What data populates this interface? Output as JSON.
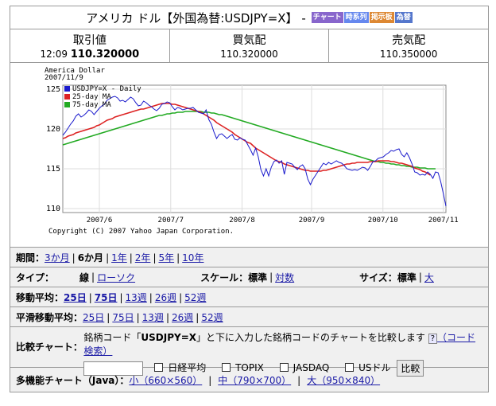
{
  "title": {
    "name": "アメリカ ドル【外国為替:USDJPY=X】 -",
    "tags": [
      {
        "label": "チャート",
        "color": "#8866cc"
      },
      {
        "label": "時系列",
        "color": "#6688ee"
      },
      {
        "label": "掲示板",
        "color": "#dd8833"
      },
      {
        "label": "為替",
        "color": "#5577cc"
      }
    ]
  },
  "quotes": [
    {
      "label": "取引値",
      "time": "12:09",
      "value": "110.320000"
    },
    {
      "label": "買気配",
      "value": "110.320000"
    },
    {
      "label": "売気配",
      "value": "110.350000"
    }
  ],
  "chart_data": {
    "type": "line",
    "title": "America Dollar",
    "subtitle": "2007/11/9",
    "x_tick_labels": [
      "2007/6",
      "2007/7",
      "2007/8",
      "2007/9",
      "2007/10",
      "2007/11"
    ],
    "y_ticks": [
      110,
      115,
      120,
      125
    ],
    "ylim": [
      109.5,
      125.5
    ],
    "grid": true,
    "legend": "top-left",
    "copyright": "Copyright (C) 2007 Yahoo Japan Corporation.",
    "series": [
      {
        "name": "USDJPY=X - Daily",
        "color": "#1a1acc",
        "values": [
          119.2,
          119.6,
          120.1,
          120.6,
          121.0,
          121.6,
          121.9,
          121.5,
          121.7,
          122.0,
          122.4,
          122.2,
          121.8,
          122.2,
          122.6,
          122.9,
          123.1,
          123.6,
          123.8,
          124.0,
          124.1,
          123.9,
          123.5,
          123.6,
          123.4,
          123.7,
          124.0,
          123.8,
          123.3,
          122.9,
          123.0,
          123.5,
          123.3,
          123.0,
          122.8,
          122.5,
          122.3,
          122.6,
          123.1,
          123.2,
          123.4,
          123.3,
          122.8,
          122.4,
          122.7,
          122.6,
          122.4,
          122.5,
          122.6,
          122.6,
          122.7,
          122.4,
          122.1,
          122.0,
          121.9,
          122.4,
          121.2,
          120.6,
          119.6,
          118.8,
          119.3,
          119.4,
          119.1,
          118.8,
          119.1,
          119.3,
          118.7,
          118.6,
          118.9,
          118.7,
          118.6,
          118.0,
          117.4,
          116.7,
          117.6,
          116.5,
          114.9,
          114.1,
          115.0,
          114.1,
          115.2,
          115.9,
          116.1,
          115.7,
          116.0,
          114.3,
          115.8,
          115.7,
          115.6,
          115.2,
          114.9,
          115.3,
          115.5,
          115.0,
          113.7,
          113.0,
          113.7,
          114.2,
          114.7,
          115.2,
          115.7,
          115.5,
          115.8,
          115.6,
          115.8,
          116.0,
          115.8,
          115.7,
          115.4,
          115.0,
          114.9,
          114.8,
          114.9,
          114.8,
          115.0,
          115.2,
          115.1,
          114.8,
          115.3,
          115.9,
          116.0,
          116.3,
          116.4,
          116.5,
          116.8,
          117.0,
          117.3,
          117.2,
          117.4,
          117.5,
          116.8,
          116.5,
          117.0,
          116.4,
          115.6,
          114.6,
          114.5,
          114.2,
          114.3,
          114.2,
          114.6,
          114.3,
          113.8,
          114.6,
          114.5,
          113.4,
          111.9,
          110.3
        ]
      },
      {
        "name": "25-day MA",
        "color": "#dd2222",
        "values": [
          118.8,
          118.9,
          119.1,
          119.2,
          119.3,
          119.5,
          119.6,
          119.7,
          119.8,
          119.9,
          120.0,
          120.1,
          120.2,
          120.4,
          120.5,
          120.7,
          120.9,
          121.1,
          121.2,
          121.3,
          121.5,
          121.6,
          121.7,
          121.8,
          121.9,
          122.0,
          122.1,
          122.2,
          122.3,
          122.4,
          122.5,
          122.5,
          122.6,
          122.7,
          122.8,
          122.9,
          123.0,
          123.1,
          123.2,
          123.2,
          123.2,
          123.2,
          123.1,
          123.1,
          123.0,
          122.9,
          122.8,
          122.7,
          122.6,
          122.5,
          122.4,
          122.3,
          122.2,
          122.1,
          121.9,
          121.7,
          121.5,
          121.3,
          121.1,
          120.8,
          120.6,
          120.4,
          120.2,
          120.0,
          119.8,
          119.6,
          119.3,
          119.1,
          118.9,
          118.7,
          118.5,
          118.3,
          118.2,
          117.9,
          117.6,
          117.4,
          117.2,
          117.0,
          116.8,
          116.6,
          116.4,
          116.2,
          116.0,
          115.9,
          115.8,
          115.6,
          115.5,
          115.4,
          115.3,
          115.2,
          115.1,
          115.0,
          114.9,
          114.8,
          114.8,
          114.7,
          114.7,
          114.7,
          114.7,
          114.7,
          114.8,
          114.8,
          114.9,
          115.0,
          115.1,
          115.2,
          115.3,
          115.4,
          115.5,
          115.6,
          115.6,
          115.7,
          115.7,
          115.8,
          115.8,
          115.8,
          115.8,
          115.8,
          115.9,
          115.9,
          115.9,
          116.0,
          116.0,
          116.0,
          116.0,
          116.0,
          115.9,
          115.9,
          115.8,
          115.7,
          115.7,
          115.6,
          115.5,
          115.4,
          115.3,
          115.1,
          115.0,
          114.9,
          114.7,
          114.6,
          114.4,
          114.2
        ]
      },
      {
        "name": "75-day MA",
        "color": "#22aa22",
        "values": [
          118.0,
          118.1,
          118.2,
          118.3,
          118.4,
          118.5,
          118.6,
          118.7,
          118.8,
          118.9,
          119.0,
          119.1,
          119.2,
          119.3,
          119.4,
          119.5,
          119.6,
          119.7,
          119.8,
          119.9,
          120.0,
          120.1,
          120.2,
          120.3,
          120.4,
          120.5,
          120.6,
          120.7,
          120.8,
          120.9,
          121.0,
          121.1,
          121.2,
          121.3,
          121.4,
          121.5,
          121.6,
          121.7,
          121.7,
          121.8,
          121.9,
          121.9,
          122.0,
          122.0,
          122.1,
          122.1,
          122.1,
          122.2,
          122.2,
          122.2,
          122.2,
          122.2,
          122.2,
          122.2,
          122.1,
          122.1,
          122.1,
          122.0,
          122.0,
          121.9,
          121.8,
          121.8,
          121.7,
          121.6,
          121.5,
          121.4,
          121.3,
          121.2,
          121.1,
          121.0,
          120.9,
          120.8,
          120.7,
          120.6,
          120.5,
          120.4,
          120.3,
          120.2,
          120.1,
          120.0,
          119.9,
          119.8,
          119.7,
          119.6,
          119.5,
          119.4,
          119.3,
          119.2,
          119.1,
          119.0,
          118.9,
          118.8,
          118.7,
          118.6,
          118.5,
          118.4,
          118.3,
          118.2,
          118.1,
          118.0,
          117.9,
          117.8,
          117.7,
          117.6,
          117.5,
          117.4,
          117.3,
          117.2,
          117.1,
          117.0,
          116.9,
          116.8,
          116.7,
          116.6,
          116.5,
          116.4,
          116.3,
          116.2,
          116.1,
          116.0,
          115.9,
          115.9,
          115.8,
          115.8,
          115.7,
          115.7,
          115.6,
          115.6,
          115.5,
          115.5,
          115.4,
          115.4,
          115.3,
          115.3,
          115.2,
          115.2,
          115.2,
          115.1,
          115.1,
          115.1,
          115.0,
          115.0,
          115.0,
          115.0
        ]
      }
    ]
  },
  "period": {
    "label": "期間：",
    "options": [
      {
        "label": "3か月",
        "link": true,
        "bold": false
      },
      {
        "label": "6か月",
        "link": false,
        "bold": true
      },
      {
        "label": "1年",
        "link": true,
        "bold": false
      },
      {
        "label": "2年",
        "link": true,
        "bold": false
      },
      {
        "label": "5年",
        "link": true,
        "bold": false
      },
      {
        "label": "10年",
        "link": true,
        "bold": false
      }
    ]
  },
  "type_row": {
    "label": "タイプ：",
    "current": "線",
    "alt": "ローソク",
    "scale_label": "スケール：",
    "scale_current": "標準",
    "scale_alt": "対数",
    "size_label": "サイズ：",
    "size_current": "標準",
    "size_alt": "大"
  },
  "ma": {
    "label": "移動平均：",
    "options": [
      {
        "label": "25日",
        "bold": true
      },
      {
        "label": "75日",
        "bold": true
      },
      {
        "label": "13週",
        "bold": false
      },
      {
        "label": "26週",
        "bold": false
      },
      {
        "label": "52週",
        "bold": false
      }
    ]
  },
  "smooth": {
    "label": "平滑移動平均：",
    "options": [
      "25日",
      "75日",
      "13週",
      "26週",
      "52週"
    ]
  },
  "compare": {
    "label": "比較チャート：",
    "desc_pre": "銘柄コード「",
    "desc_code": "USDJPY=X",
    "desc_post": "」と下に入力した銘柄コードのチャートを比較します",
    "help_label": "?",
    "code_search": "（コード検索）",
    "input_value": "",
    "checkboxes": [
      "日経平均",
      "TOPIX",
      "JASDAQ",
      "USドル"
    ],
    "button": "比較"
  },
  "java": {
    "label": "多機能チャート（Java）：",
    "options": [
      "小（660×560）",
      "中（790×700）",
      "大（950×840）"
    ]
  }
}
